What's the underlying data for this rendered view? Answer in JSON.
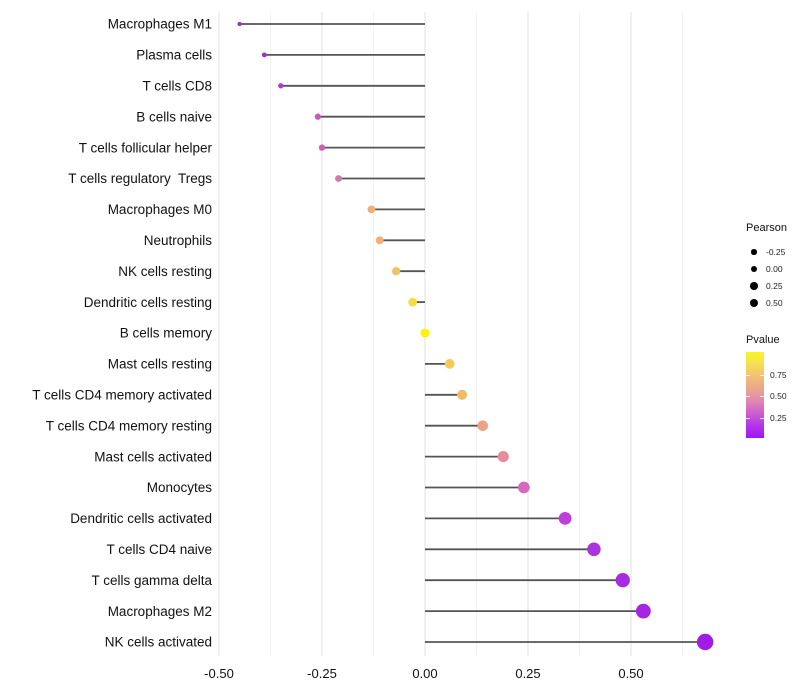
{
  "figure": {
    "background": "#FFFFFF"
  },
  "chart_data": {
    "type": "lollipop",
    "orientation": "horizontal",
    "title": "",
    "xlabel": "",
    "ylabel": "",
    "categories": [
      "Macrophages M1",
      "Plasma cells",
      "T cells CD8",
      "B cells naive",
      "T cells follicular helper",
      "T cells regulatory  Tregs",
      "Macrophages M0",
      "Neutrophils",
      "NK cells resting",
      "Dendritic cells resting",
      "B cells memory",
      "Mast cells resting",
      "T cells CD4 memory activated",
      "T cells CD4 memory resting",
      "Mast cells activated",
      "Monocytes",
      "Dendritic cells activated",
      "T cells CD4 naive",
      "T cells gamma delta",
      "Macrophages M2",
      "NK cells activated"
    ],
    "series": [
      {
        "name": "Pearson",
        "values": [
          -0.45,
          -0.39,
          -0.35,
          -0.26,
          -0.25,
          -0.21,
          -0.13,
          -0.11,
          -0.07,
          -0.03,
          0.0,
          0.06,
          0.09,
          0.14,
          0.19,
          0.24,
          0.34,
          0.41,
          0.48,
          0.53,
          0.68
        ]
      }
    ],
    "point_colors": [
      "#9233C4",
      "#9B35CC",
      "#A83FCE",
      "#C75DB9",
      "#C962B6",
      "#D478A4",
      "#EFAE7C",
      "#F0B078",
      "#F2C366",
      "#F7DC45",
      "#FAF30D",
      "#F3CB59",
      "#F0BD66",
      "#ECA283",
      "#E68C9C",
      "#D669BE",
      "#BC3FDC",
      "#AB34DF",
      "#A62BE1",
      "#A526E2",
      "#A01BE5"
    ],
    "x_axis": {
      "tick_labels": [
        "-0.50",
        "-0.25",
        "0.00",
        "0.25",
        "0.50"
      ],
      "tick_values": [
        -0.5,
        -0.25,
        0.0,
        0.25,
        0.5
      ],
      "minor_tick_values": [
        -0.375,
        -0.125,
        0.125,
        0.375,
        0.625
      ],
      "range": [
        -0.5,
        0.74
      ],
      "grid": "vertical-only"
    },
    "legend": {
      "size": {
        "title": "Pearson",
        "labels": [
          "-0.25",
          "0.00",
          "0.25",
          "0.50"
        ],
        "values": [
          -0.25,
          0.0,
          0.25,
          0.5
        ],
        "dot_color": "#000000"
      },
      "color": {
        "title": "Pvalue",
        "tick_labels": [
          "0.75",
          "0.50",
          "0.25"
        ],
        "tick_values": [
          0.75,
          0.5,
          0.25
        ],
        "gradient_stops": [
          "#FAF421 0%",
          "#F6DE55 14%",
          "#F1BD78 30%",
          "#E9A193 45%",
          "#DF85B2 58%",
          "#CC5CD1 72%",
          "#B233EC 86%",
          "#A115F3 100%"
        ],
        "high_value_color": "#FAF421",
        "low_value_color": "#A115F3"
      }
    },
    "stem_color": "#545454",
    "gridline_major_color": "#E4E4E4",
    "gridline_minor_color": "#F0F0F0",
    "text_color": "#111111"
  }
}
